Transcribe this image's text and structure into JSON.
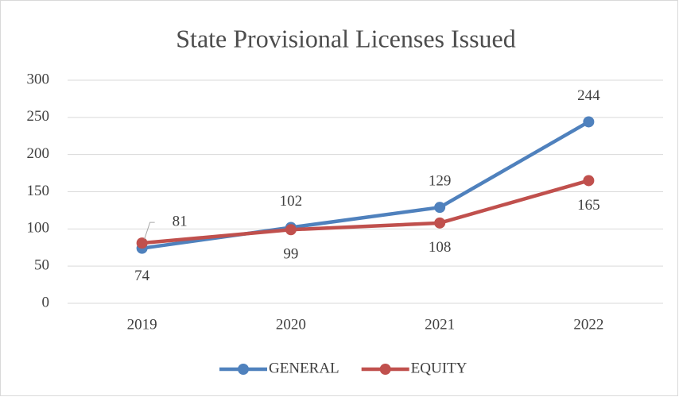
{
  "chart_data": {
    "type": "line",
    "title": "State Provisional Licenses Issued",
    "categories": [
      "2019",
      "2020",
      "2021",
      "2022"
    ],
    "series": [
      {
        "name": "GENERAL",
        "color": "#4f81bd",
        "values": [
          74,
          102,
          129,
          244
        ]
      },
      {
        "name": "EQUITY",
        "color": "#c0504d",
        "values": [
          81,
          99,
          108,
          165
        ]
      }
    ],
    "ylim": [
      0,
      300
    ],
    "yticks": [
      0,
      50,
      100,
      150,
      200,
      250,
      300
    ],
    "grid": true,
    "legend": "bottom"
  }
}
